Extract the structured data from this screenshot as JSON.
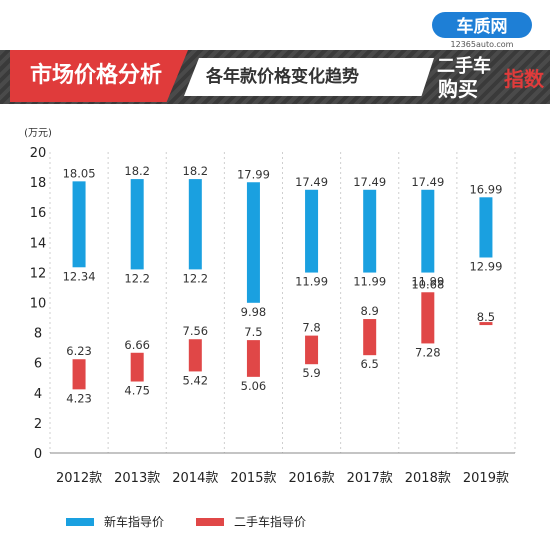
{
  "header": {
    "title": "市场价格分析",
    "subtitle": "各年款价格变化趋势",
    "logo_brand": "车质网",
    "logo_url_text": "12365auto.com",
    "logo_line1": "二手车",
    "logo_line2": "购买",
    "logo_badge": "指数"
  },
  "colors": {
    "new_car": "#1aa0e0",
    "used_car": "#e04747",
    "title_red": "#e03b3b",
    "logo_blue": "#1e7fd6"
  },
  "chart_data": {
    "type": "bar",
    "subtype": "floating-range",
    "ylabel": "(万元)",
    "ylim": [
      0,
      20
    ],
    "yticks": [
      0,
      2,
      4,
      6,
      8,
      10,
      12,
      14,
      16,
      18,
      20
    ],
    "grid": "vertical-dashed",
    "legend_position": "bottom",
    "categories": [
      "2012款",
      "2013款",
      "2014款",
      "2015款",
      "2016款",
      "2017款",
      "2018款",
      "2019款"
    ],
    "series": [
      {
        "name": "新车指导价",
        "high": [
          18.05,
          18.2,
          18.2,
          17.99,
          17.49,
          17.49,
          17.49,
          16.99
        ],
        "low": [
          12.34,
          12.2,
          12.2,
          9.98,
          11.99,
          11.99,
          11.99,
          12.99
        ],
        "high_labels": [
          "18.05",
          "18.2",
          "18.2",
          "17.99",
          "17.49",
          "17.49",
          "17.49",
          "16.99"
        ],
        "low_labels": [
          "12.34",
          "12.2",
          "12.2",
          "9.98",
          "11.99",
          "11.99",
          "11.99",
          "12.99"
        ]
      },
      {
        "name": "二手车指导价",
        "high": [
          6.23,
          6.66,
          7.56,
          7.5,
          7.8,
          8.9,
          10.68,
          8.5
        ],
        "low": [
          4.23,
          4.75,
          5.42,
          5.06,
          5.9,
          6.5,
          7.28,
          8.5
        ],
        "high_labels": [
          "6.23",
          "6.66",
          "7.56",
          "7.5",
          "7.8",
          "8.9",
          "10.68",
          "8.5"
        ],
        "low_labels": [
          "4.23",
          "4.75",
          "5.42",
          "5.06",
          "5.9",
          "6.5",
          "7.28",
          ""
        ]
      }
    ]
  }
}
